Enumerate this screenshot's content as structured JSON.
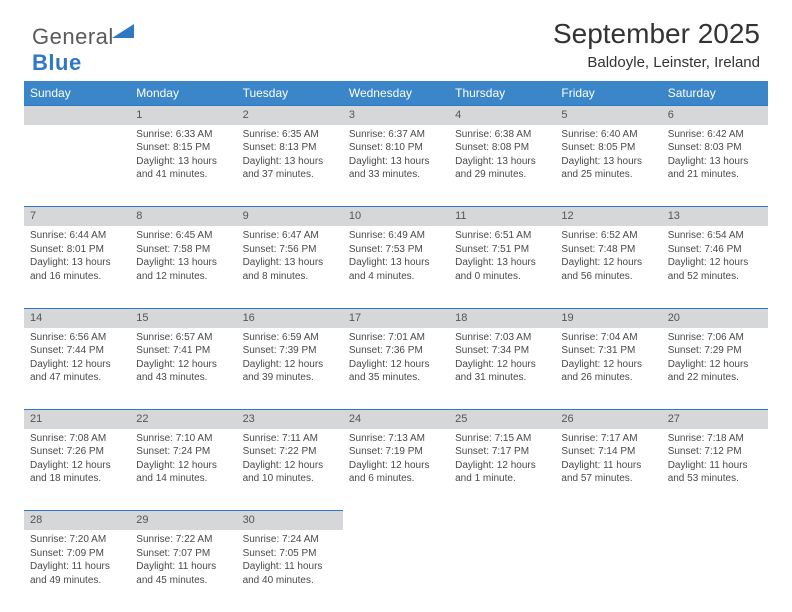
{
  "brand": {
    "part1": "General",
    "part2": "Blue"
  },
  "title": "September 2025",
  "subtitle": "Baldoyle, Leinster, Ireland",
  "colors": {
    "header_bg": "#3a86c8",
    "header_text": "#ffffff",
    "daynum_bg": "#d5d7d9",
    "daynum_border": "#2f78c4",
    "body_text": "#4a4a4a",
    "logo_gray": "#5a5a5a",
    "logo_blue": "#2f78c4"
  },
  "typography": {
    "title_fontsize": 28,
    "subtitle_fontsize": 15,
    "dayheader_fontsize": 12,
    "cell_fontsize": 10
  },
  "day_headers": [
    "Sunday",
    "Monday",
    "Tuesday",
    "Wednesday",
    "Thursday",
    "Friday",
    "Saturday"
  ],
  "weeks": [
    {
      "nums": [
        "",
        "1",
        "2",
        "3",
        "4",
        "5",
        "6"
      ],
      "cells": [
        [],
        [
          "Sunrise: 6:33 AM",
          "Sunset: 8:15 PM",
          "Daylight: 13 hours",
          "and 41 minutes."
        ],
        [
          "Sunrise: 6:35 AM",
          "Sunset: 8:13 PM",
          "Daylight: 13 hours",
          "and 37 minutes."
        ],
        [
          "Sunrise: 6:37 AM",
          "Sunset: 8:10 PM",
          "Daylight: 13 hours",
          "and 33 minutes."
        ],
        [
          "Sunrise: 6:38 AM",
          "Sunset: 8:08 PM",
          "Daylight: 13 hours",
          "and 29 minutes."
        ],
        [
          "Sunrise: 6:40 AM",
          "Sunset: 8:05 PM",
          "Daylight: 13 hours",
          "and 25 minutes."
        ],
        [
          "Sunrise: 6:42 AM",
          "Sunset: 8:03 PM",
          "Daylight: 13 hours",
          "and 21 minutes."
        ]
      ]
    },
    {
      "nums": [
        "7",
        "8",
        "9",
        "10",
        "11",
        "12",
        "13"
      ],
      "cells": [
        [
          "Sunrise: 6:44 AM",
          "Sunset: 8:01 PM",
          "Daylight: 13 hours",
          "and 16 minutes."
        ],
        [
          "Sunrise: 6:45 AM",
          "Sunset: 7:58 PM",
          "Daylight: 13 hours",
          "and 12 minutes."
        ],
        [
          "Sunrise: 6:47 AM",
          "Sunset: 7:56 PM",
          "Daylight: 13 hours",
          "and 8 minutes."
        ],
        [
          "Sunrise: 6:49 AM",
          "Sunset: 7:53 PM",
          "Daylight: 13 hours",
          "and 4 minutes."
        ],
        [
          "Sunrise: 6:51 AM",
          "Sunset: 7:51 PM",
          "Daylight: 13 hours",
          "and 0 minutes."
        ],
        [
          "Sunrise: 6:52 AM",
          "Sunset: 7:48 PM",
          "Daylight: 12 hours",
          "and 56 minutes."
        ],
        [
          "Sunrise: 6:54 AM",
          "Sunset: 7:46 PM",
          "Daylight: 12 hours",
          "and 52 minutes."
        ]
      ]
    },
    {
      "nums": [
        "14",
        "15",
        "16",
        "17",
        "18",
        "19",
        "20"
      ],
      "cells": [
        [
          "Sunrise: 6:56 AM",
          "Sunset: 7:44 PM",
          "Daylight: 12 hours",
          "and 47 minutes."
        ],
        [
          "Sunrise: 6:57 AM",
          "Sunset: 7:41 PM",
          "Daylight: 12 hours",
          "and 43 minutes."
        ],
        [
          "Sunrise: 6:59 AM",
          "Sunset: 7:39 PM",
          "Daylight: 12 hours",
          "and 39 minutes."
        ],
        [
          "Sunrise: 7:01 AM",
          "Sunset: 7:36 PM",
          "Daylight: 12 hours",
          "and 35 minutes."
        ],
        [
          "Sunrise: 7:03 AM",
          "Sunset: 7:34 PM",
          "Daylight: 12 hours",
          "and 31 minutes."
        ],
        [
          "Sunrise: 7:04 AM",
          "Sunset: 7:31 PM",
          "Daylight: 12 hours",
          "and 26 minutes."
        ],
        [
          "Sunrise: 7:06 AM",
          "Sunset: 7:29 PM",
          "Daylight: 12 hours",
          "and 22 minutes."
        ]
      ]
    },
    {
      "nums": [
        "21",
        "22",
        "23",
        "24",
        "25",
        "26",
        "27"
      ],
      "cells": [
        [
          "Sunrise: 7:08 AM",
          "Sunset: 7:26 PM",
          "Daylight: 12 hours",
          "and 18 minutes."
        ],
        [
          "Sunrise: 7:10 AM",
          "Sunset: 7:24 PM",
          "Daylight: 12 hours",
          "and 14 minutes."
        ],
        [
          "Sunrise: 7:11 AM",
          "Sunset: 7:22 PM",
          "Daylight: 12 hours",
          "and 10 minutes."
        ],
        [
          "Sunrise: 7:13 AM",
          "Sunset: 7:19 PM",
          "Daylight: 12 hours",
          "and 6 minutes."
        ],
        [
          "Sunrise: 7:15 AM",
          "Sunset: 7:17 PM",
          "Daylight: 12 hours",
          "and 1 minute."
        ],
        [
          "Sunrise: 7:17 AM",
          "Sunset: 7:14 PM",
          "Daylight: 11 hours",
          "and 57 minutes."
        ],
        [
          "Sunrise: 7:18 AM",
          "Sunset: 7:12 PM",
          "Daylight: 11 hours",
          "and 53 minutes."
        ]
      ]
    },
    {
      "nums": [
        "28",
        "29",
        "30",
        "",
        "",
        "",
        ""
      ],
      "cells": [
        [
          "Sunrise: 7:20 AM",
          "Sunset: 7:09 PM",
          "Daylight: 11 hours",
          "and 49 minutes."
        ],
        [
          "Sunrise: 7:22 AM",
          "Sunset: 7:07 PM",
          "Daylight: 11 hours",
          "and 45 minutes."
        ],
        [
          "Sunrise: 7:24 AM",
          "Sunset: 7:05 PM",
          "Daylight: 11 hours",
          "and 40 minutes."
        ],
        [],
        [],
        [],
        []
      ]
    }
  ]
}
